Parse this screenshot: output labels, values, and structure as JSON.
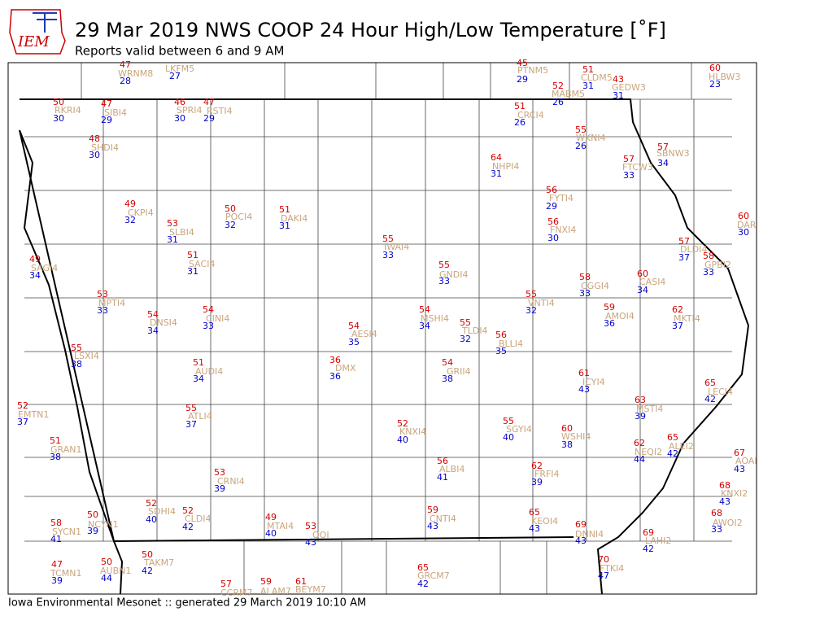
{
  "header": {
    "logo": "IEM",
    "title": "29 Mar 2019 NWS COOP 24 Hour High/Low Temperature [˚F]",
    "subtitle": "Reports valid between 6 and 9 AM"
  },
  "footer": "Iowa Environmental Mesonet :: generated 29 March 2019 10:10 AM",
  "stations": [
    {
      "high": "47",
      "id": "WRNM8",
      "low": "28"
    },
    {
      "id": "LKFM5",
      "low": "27"
    },
    {
      "high": "45",
      "id": "PTNM5",
      "low": "29"
    },
    {
      "high": "51",
      "id": "CLDM5",
      "low": "31"
    },
    {
      "high": "43",
      "id": "GEDW3",
      "low": "31"
    },
    {
      "high": "60",
      "id": "HLBW3",
      "low": "23"
    },
    {
      "high": "52",
      "id": "MABM5",
      "low": "26"
    },
    {
      "high": "50",
      "id": "RKRI4",
      "low": "30"
    },
    {
      "high": "47",
      "id": "SIBI4",
      "low": "29"
    },
    {
      "high": "46",
      "id": "SPRI4",
      "low": "30"
    },
    {
      "high": "47",
      "id": "RSTI4",
      "low": "29"
    },
    {
      "high": "51",
      "id": "CRCI4",
      "low": "26"
    },
    {
      "high": "55",
      "id": "WKNI4",
      "low": "26"
    },
    {
      "high": "48",
      "id": "SHDI4",
      "low": "30"
    },
    {
      "high": "57",
      "id": "SBNW3",
      "low": "34"
    },
    {
      "high": "64",
      "id": "NHPI4",
      "low": "31"
    },
    {
      "high": "57",
      "id": "FTCW3",
      "low": "33"
    },
    {
      "high": "56",
      "id": "FYTI4",
      "low": "29"
    },
    {
      "high": "49",
      "id": "CKPI4",
      "low": "32"
    },
    {
      "high": "50",
      "id": "POCI4",
      "low": "32"
    },
    {
      "high": "51",
      "id": "DAKI4",
      "low": "31"
    },
    {
      "high": "60",
      "id": "DAR",
      "low": "30"
    },
    {
      "high": "53",
      "id": "SLBI4",
      "low": "31"
    },
    {
      "high": "56",
      "id": "FNXI4",
      "low": "30"
    },
    {
      "high": "55",
      "id": "IWAI4",
      "low": "33"
    },
    {
      "high": "57",
      "id": "DLDI4",
      "low": "37"
    },
    {
      "high": "49",
      "id": "SAGI4",
      "low": "34"
    },
    {
      "high": "51",
      "id": "SACI4",
      "low": "31"
    },
    {
      "high": "58",
      "id": "GPBI2",
      "low": "33"
    },
    {
      "high": "55",
      "id": "GNDI4",
      "low": "33"
    },
    {
      "high": "60",
      "id": "CASI4",
      "low": "34"
    },
    {
      "high": "58",
      "id": "CGGI4",
      "low": "33"
    },
    {
      "high": "55",
      "id": "VNTI4",
      "low": "32"
    },
    {
      "high": "53",
      "id": "MPTI4",
      "low": "33"
    },
    {
      "high": "59",
      "id": "AMOI4",
      "low": "36"
    },
    {
      "high": "62",
      "id": "MKTI4",
      "low": "37"
    },
    {
      "high": "54",
      "id": "DNSI4",
      "low": "34"
    },
    {
      "high": "54",
      "id": "CINI4",
      "low": "33"
    },
    {
      "high": "54",
      "id": "MSHI4",
      "low": "34"
    },
    {
      "high": "55",
      "id": "TLDI4",
      "low": "32"
    },
    {
      "high": "54",
      "id": "AESI4",
      "low": "35"
    },
    {
      "high": "56",
      "id": "BLLI4",
      "low": "35"
    },
    {
      "high": "55",
      "id": "LSXI4",
      "low": "38"
    },
    {
      "high": "51",
      "id": "AUDI4",
      "low": "34"
    },
    {
      "high": "36",
      "id": "DMX",
      "low": "36"
    },
    {
      "high": "54",
      "id": "GRII4",
      "low": "38"
    },
    {
      "high": "61",
      "id": "ICYI4",
      "low": "43"
    },
    {
      "high": "65",
      "id": "LECI4",
      "low": "42"
    },
    {
      "high": "52",
      "id": "EMTN1",
      "low": "37"
    },
    {
      "high": "63",
      "id": "MSTI4",
      "low": "39"
    },
    {
      "high": "55",
      "id": "ATLI4",
      "low": "37"
    },
    {
      "high": "52",
      "id": "KNXI4",
      "low": "40"
    },
    {
      "high": "55",
      "id": "SGYI4",
      "low": "40"
    },
    {
      "high": "60",
      "id": "WSHI4",
      "low": "38"
    },
    {
      "high": "51",
      "id": "GRAN1",
      "low": "38"
    },
    {
      "high": "62",
      "id": "NEQI2",
      "low": "44"
    },
    {
      "high": "65",
      "id": "ALEI2",
      "low": "42"
    },
    {
      "high": "67",
      "id": "AOAI",
      "low": "43"
    },
    {
      "high": "56",
      "id": "ALBI4",
      "low": "41"
    },
    {
      "high": "62",
      "id": "FRFI4",
      "low": "39"
    },
    {
      "high": "53",
      "id": "CRNI4",
      "low": "39"
    },
    {
      "high": "68",
      "id": "KNXI2",
      "low": "43"
    },
    {
      "high": "52",
      "id": "SDHI4",
      "low": "40"
    },
    {
      "high": "52",
      "id": "CLDI4",
      "low": "42"
    },
    {
      "high": "59",
      "id": "CNTI4",
      "low": "43"
    },
    {
      "high": "65",
      "id": "KEOI4",
      "low": "43"
    },
    {
      "high": "68",
      "id": "AWOI2",
      "low": "33"
    },
    {
      "high": "50",
      "id": "NCYN1",
      "low": "39"
    },
    {
      "high": "58",
      "id": "SYCN1",
      "low": "41"
    },
    {
      "high": "49",
      "id": "MTAI4",
      "low": "40"
    },
    {
      "high": "53",
      "id": "OOI",
      "low": "43"
    },
    {
      "high": "69",
      "id": "DNNI4",
      "low": "43"
    },
    {
      "high": "69",
      "id": "LAHI2",
      "low": "42"
    },
    {
      "high": "50",
      "id": "TAKM7",
      "low": "42"
    },
    {
      "high": "47",
      "id": "TCMN1",
      "low": "39"
    },
    {
      "high": "50",
      "id": "AUBN1",
      "low": "44"
    },
    {
      "high": "70",
      "id": "FTKI4",
      "low": "47"
    },
    {
      "high": "65",
      "id": "GRCM7",
      "low": "42"
    },
    {
      "high": "57",
      "id": "CCRM7"
    },
    {
      "high": "59",
      "id": "ALAM7"
    },
    {
      "high": "61",
      "id": "BEYM7"
    }
  ]
}
